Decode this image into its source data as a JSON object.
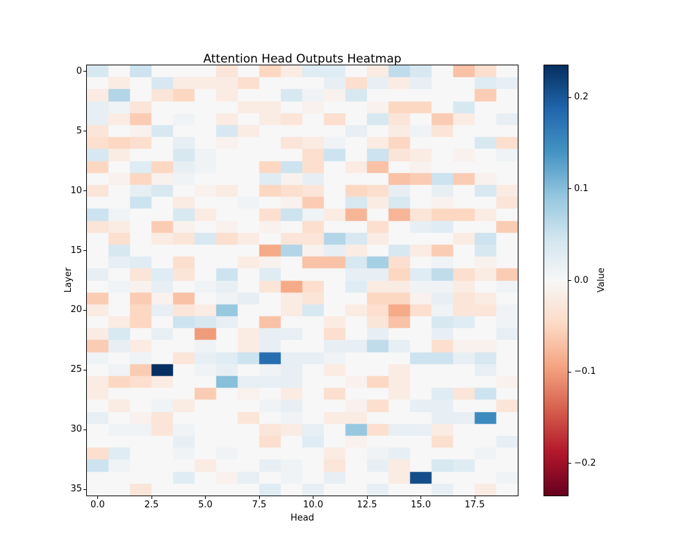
{
  "figure": {
    "background": "#ffffff"
  },
  "chart_data": {
    "type": "heatmap",
    "title": "Attention Head Outputs Heatmap",
    "xlabel": "Head",
    "ylabel": "Layer",
    "colorbar_label": "Value",
    "n_cols": 20,
    "n_rows": 36,
    "vmin": -0.235,
    "vmax": 0.235,
    "colormap": "RdBu",
    "colormap_stops": [
      {
        "pos": 0.0,
        "color": "#67001f"
      },
      {
        "pos": 0.1,
        "color": "#b2182b"
      },
      {
        "pos": 0.2,
        "color": "#d6604d"
      },
      {
        "pos": 0.3,
        "color": "#f4a582"
      },
      {
        "pos": 0.4,
        "color": "#fddbc7"
      },
      {
        "pos": 0.5,
        "color": "#f7f7f7"
      },
      {
        "pos": 0.6,
        "color": "#d1e5f0"
      },
      {
        "pos": 0.7,
        "color": "#92c5de"
      },
      {
        "pos": 0.8,
        "color": "#4393c3"
      },
      {
        "pos": 0.9,
        "color": "#2166ac"
      },
      {
        "pos": 1.0,
        "color": "#053061"
      }
    ],
    "x_ticks": {
      "values": [
        0,
        2.5,
        5,
        7.5,
        10,
        12.5,
        15,
        17.5
      ],
      "labels": [
        "0.0",
        "2.5",
        "5.0",
        "7.5",
        "10.0",
        "12.5",
        "15.0",
        "17.5"
      ]
    },
    "y_ticks": {
      "values": [
        0,
        5,
        10,
        15,
        20,
        25,
        30,
        35
      ],
      "labels": [
        "0",
        "5",
        "10",
        "15",
        "20",
        "25",
        "30",
        "35"
      ]
    },
    "colorbar_ticks": {
      "values": [
        0.2,
        0.1,
        0.0,
        -0.1,
        -0.2
      ],
      "labels": [
        "0.2",
        "0.1",
        "0.0",
        "−0.1",
        "−0.2"
      ]
    },
    "values": [
      [
        0.04,
        0,
        0.05,
        0,
        0,
        0,
        -0.03,
        0,
        -0.05,
        -0.02,
        0.03,
        0.03,
        0,
        -0.02,
        0.06,
        0.04,
        0,
        -0.07,
        -0.04,
        0
      ],
      [
        0,
        -0.02,
        0,
        0.04,
        -0.02,
        -0.02,
        -0.02,
        -0.04,
        0,
        0,
        0,
        0.02,
        -0.04,
        0.02,
        -0.02,
        0.02,
        0,
        0,
        0.03,
        0.02
      ],
      [
        -0.02,
        0.07,
        0,
        -0.03,
        -0.05,
        0,
        -0.02,
        0,
        0,
        0.04,
        0.01,
        -0.01,
        0.04,
        0,
        0,
        0,
        0,
        0,
        -0.06,
        0
      ],
      [
        0.02,
        0.01,
        -0.03,
        0,
        0,
        0,
        0,
        -0.02,
        -0.02,
        0,
        -0.01,
        0,
        0,
        -0.01,
        -0.05,
        -0.05,
        0,
        0.04,
        0,
        0
      ],
      [
        0.02,
        -0.02,
        -0.06,
        0,
        0.01,
        0,
        -0.02,
        0,
        -0.02,
        -0.03,
        0,
        -0.04,
        0,
        0.04,
        -0.03,
        0,
        -0.06,
        -0.02,
        0,
        0.02
      ],
      [
        -0.03,
        0,
        -0.01,
        0.04,
        0,
        0,
        0.04,
        -0.02,
        0,
        0,
        0,
        0,
        0.02,
        0,
        -0.02,
        0.01,
        -0.03,
        0,
        0,
        0
      ],
      [
        -0.04,
        -0.05,
        -0.04,
        0,
        0.02,
        0,
        -0.01,
        0,
        0,
        -0.03,
        -0.02,
        0.01,
        0,
        -0.02,
        -0.05,
        0,
        0,
        0,
        0.04,
        -0.04
      ],
      [
        0.04,
        -0.02,
        0,
        0,
        0.04,
        0.01,
        0,
        0,
        0,
        0,
        -0.04,
        0.05,
        0,
        0.05,
        -0.03,
        -0.02,
        0,
        -0.01,
        0,
        0.01
      ],
      [
        -0.05,
        0,
        0.03,
        -0.05,
        0.02,
        0.01,
        0,
        0,
        -0.05,
        0.05,
        -0.04,
        0,
        -0.02,
        -0.07,
        0,
        -0.01,
        0,
        0,
        0,
        0
      ],
      [
        0,
        -0.01,
        -0.05,
        -0.01,
        0.01,
        0,
        0,
        0,
        0.03,
        -0.01,
        0.02,
        0,
        0,
        0,
        -0.07,
        -0.06,
        0.05,
        -0.06,
        -0.01,
        0
      ],
      [
        -0.03,
        0,
        0.02,
        0.04,
        0,
        -0.01,
        -0.02,
        0,
        -0.05,
        -0.04,
        -0.03,
        0,
        -0.05,
        -0.04,
        0.02,
        0,
        0.02,
        0,
        0.04,
        -0.02
      ],
      [
        0,
        0,
        0.05,
        0,
        -0.02,
        0,
        0,
        0.01,
        0,
        -0.01,
        -0.06,
        0,
        0.04,
        -0.02,
        0.04,
        0,
        -0.01,
        0,
        0,
        -0.03
      ],
      [
        0.05,
        0.01,
        0,
        0,
        0.04,
        -0.02,
        0,
        0,
        -0.04,
        0.05,
        0.01,
        -0.02,
        -0.08,
        0,
        -0.08,
        -0.03,
        -0.05,
        -0.05,
        -0.02,
        0
      ],
      [
        -0.03,
        -0.02,
        0,
        -0.06,
        -0.01,
        0,
        -0.01,
        0,
        -0.01,
        0,
        -0.04,
        0,
        0,
        -0.04,
        0,
        0.02,
        0.03,
        0,
        0,
        -0.06
      ],
      [
        0,
        -0.04,
        0,
        -0.02,
        -0.03,
        0.04,
        -0.04,
        -0.02,
        0,
        -0.03,
        -0.03,
        0.07,
        0.04,
        -0.02,
        0,
        0,
        0,
        -0.02,
        0.05,
        0
      ],
      [
        0,
        0.04,
        0,
        0,
        0,
        0,
        0,
        0,
        -0.09,
        0.07,
        -0.01,
        0.02,
        -0.02,
        0,
        0.04,
        -0.02,
        -0.06,
        0,
        0.04,
        0
      ],
      [
        0,
        0.02,
        0.03,
        0,
        -0.04,
        0,
        0,
        -0.02,
        -0.01,
        0,
        -0.07,
        -0.07,
        0.04,
        0.08,
        -0.04,
        0,
        0.01,
        0,
        -0.01,
        0
      ],
      [
        0.02,
        0,
        -0.03,
        0.03,
        -0.03,
        0,
        0.05,
        0,
        0.03,
        0,
        0,
        0,
        0.02,
        0.02,
        -0.05,
        0.03,
        0.06,
        -0.04,
        -0.02,
        -0.06
      ],
      [
        0,
        0.01,
        -0.01,
        0.02,
        0,
        0.01,
        0.02,
        0,
        -0.03,
        -0.09,
        -0.04,
        0,
        0.03,
        -0.02,
        -0.02,
        0.01,
        0.01,
        -0.02,
        0,
        0.01
      ],
      [
        -0.06,
        0,
        -0.06,
        -0.01,
        -0.07,
        0,
        0.01,
        0.02,
        0,
        -0.02,
        -0.03,
        0,
        0,
        -0.05,
        -0.05,
        -0.01,
        0.02,
        -0.03,
        -0.02,
        0
      ],
      [
        -0.02,
        0,
        -0.05,
        0.02,
        -0.03,
        -0.02,
        0.09,
        0,
        0,
        -0.02,
        0.04,
        0,
        -0.02,
        -0.04,
        -0.09,
        -0.04,
        0.01,
        -0.03,
        -0.03,
        0.01
      ],
      [
        0,
        -0.02,
        -0.05,
        0,
        0.05,
        0.04,
        0.02,
        0,
        -0.07,
        0,
        0,
        -0.02,
        0,
        -0.03,
        -0.07,
        0,
        0.04,
        0.03,
        0,
        0.01
      ],
      [
        -0.02,
        0.04,
        0,
        0.02,
        0,
        -0.1,
        0,
        -0.02,
        0.02,
        0.02,
        0,
        -0.04,
        0,
        0.02,
        0,
        0,
        0.02,
        0,
        0,
        0.02
      ],
      [
        -0.06,
        0.02,
        -0.02,
        0,
        0,
        0.01,
        0,
        -0.02,
        0.02,
        0,
        0,
        0.02,
        0.02,
        0.06,
        0.02,
        0,
        -0.04,
        -0.01,
        -0.01,
        0
      ],
      [
        0.01,
        0,
        0.01,
        0,
        -0.03,
        0.02,
        0.03,
        0.05,
        0.18,
        0.02,
        0.02,
        0.01,
        0,
        0,
        0,
        0.05,
        0.05,
        0.02,
        0.04,
        0
      ],
      [
        0,
        0.01,
        -0.06,
        0.235,
        0,
        0.01,
        0.02,
        0,
        0.01,
        0.02,
        0,
        -0.02,
        0,
        0,
        -0.02,
        0,
        0,
        0,
        0.02,
        0
      ],
      [
        -0.02,
        -0.05,
        -0.04,
        -0.02,
        0,
        0,
        0.1,
        0.02,
        0.02,
        0.02,
        0,
        0,
        -0.01,
        -0.05,
        -0.02,
        0,
        0,
        0,
        0,
        -0.01
      ],
      [
        -0.02,
        0,
        0,
        0,
        0,
        -0.06,
        0,
        -0.01,
        0,
        -0.02,
        0,
        -0.04,
        0,
        0,
        -0.02,
        0,
        0.03,
        -0.03,
        0.05,
        0
      ],
      [
        0,
        -0.02,
        0,
        0.01,
        -0.02,
        0,
        0,
        0,
        0.01,
        0.02,
        0,
        0,
        -0.01,
        -0.04,
        0,
        0.02,
        0.02,
        0,
        0,
        -0.03
      ],
      [
        0.02,
        0,
        -0.01,
        -0.03,
        0,
        0,
        0,
        -0.03,
        0,
        0.01,
        0,
        -0.02,
        -0.02,
        0,
        0,
        0,
        0.02,
        0.02,
        0.15,
        0
      ],
      [
        0,
        0.01,
        0.01,
        -0.03,
        0.01,
        0,
        0,
        0,
        -0.03,
        -0.02,
        0.02,
        0,
        0.09,
        -0.04,
        0.02,
        0.02,
        -0.02,
        0,
        0,
        0
      ],
      [
        0,
        0,
        0,
        0,
        0.02,
        0,
        0,
        0,
        -0.04,
        0,
        0.03,
        0,
        -0.01,
        0,
        0,
        0,
        -0.04,
        0,
        0,
        0.02
      ],
      [
        -0.04,
        0.03,
        0,
        0,
        0.01,
        0,
        0.01,
        0,
        0,
        0,
        0,
        -0.02,
        0,
        0.01,
        0.02,
        0,
        0,
        0,
        0.01,
        0
      ],
      [
        0.05,
        0.01,
        0,
        0,
        0,
        -0.02,
        0,
        0,
        0.02,
        0.01,
        0,
        -0.03,
        0,
        0.02,
        -0.02,
        0,
        0.04,
        0.03,
        0,
        0
      ],
      [
        0,
        0,
        0,
        0,
        0.03,
        0,
        -0.01,
        0.02,
        0,
        0.01,
        0,
        0.02,
        0,
        0,
        -0.02,
        0.21,
        0,
        0,
        0,
        0.01
      ],
      [
        0,
        0,
        -0.03,
        0,
        0,
        0,
        0,
        0,
        0.03,
        0,
        0.02,
        0,
        0,
        0.02,
        0,
        0,
        0.02,
        0,
        -0.02,
        0
      ]
    ]
  }
}
